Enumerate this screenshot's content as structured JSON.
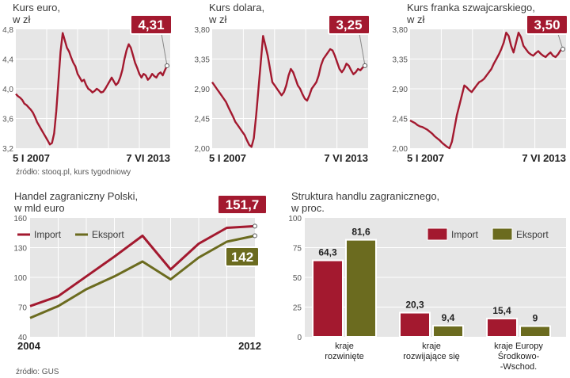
{
  "colors": {
    "red": "#a3192f",
    "olive": "#6b6b1f",
    "panel": "#e6e6e6",
    "grid": "#ffffff"
  },
  "chart_data": [
    {
      "type": "line",
      "title": "Kurs euro,",
      "subtitle": "w zł",
      "badge": "4,31",
      "y_ticks": [
        "4,8",
        "4,4",
        "4,0",
        "3,6",
        "3,2"
      ],
      "ylim": [
        3.2,
        4.8
      ],
      "x_labels": [
        "5 I 2007",
        "7 VI 2013"
      ],
      "series": [
        {
          "values": [
            3.93,
            3.9,
            3.88,
            3.85,
            3.8,
            3.78,
            3.75,
            3.72,
            3.68,
            3.62,
            3.55,
            3.5,
            3.45,
            3.4,
            3.35,
            3.3,
            3.25,
            3.27,
            3.4,
            3.7,
            4.1,
            4.5,
            4.75,
            4.65,
            4.55,
            4.5,
            4.42,
            4.35,
            4.3,
            4.2,
            4.15,
            4.1,
            4.12,
            4.05,
            4.0,
            3.98,
            3.95,
            3.97,
            4.0,
            3.98,
            3.95,
            3.96,
            4.0,
            4.05,
            4.1,
            4.15,
            4.1,
            4.05,
            4.08,
            4.15,
            4.25,
            4.4,
            4.52,
            4.6,
            4.55,
            4.45,
            4.35,
            4.28,
            4.2,
            4.15,
            4.2,
            4.18,
            4.12,
            4.15,
            4.2,
            4.17,
            4.15,
            4.2,
            4.22,
            4.18,
            4.25,
            4.31
          ]
        }
      ]
    },
    {
      "type": "line",
      "title": "Kurs dolara,",
      "subtitle": "w zł",
      "badge": "3,25",
      "y_ticks": [
        "3,80",
        "3,35",
        "2,90",
        "2,45",
        "2,00"
      ],
      "ylim": [
        2.0,
        3.8
      ],
      "x_labels": [
        "5 I 2007",
        "7 VI 2013"
      ],
      "series": [
        {
          "values": [
            3.0,
            2.95,
            2.9,
            2.85,
            2.8,
            2.75,
            2.7,
            2.62,
            2.55,
            2.48,
            2.4,
            2.35,
            2.3,
            2.25,
            2.2,
            2.12,
            2.05,
            2.02,
            2.15,
            2.5,
            2.9,
            3.3,
            3.7,
            3.55,
            3.4,
            3.2,
            3.0,
            2.95,
            2.9,
            2.85,
            2.8,
            2.85,
            2.95,
            3.1,
            3.2,
            3.15,
            3.05,
            2.95,
            2.9,
            2.82,
            2.75,
            2.72,
            2.8,
            2.9,
            2.95,
            3.0,
            3.1,
            3.25,
            3.35,
            3.4,
            3.45,
            3.5,
            3.48,
            3.4,
            3.3,
            3.2,
            3.15,
            3.2,
            3.28,
            3.25,
            3.18,
            3.12,
            3.15,
            3.2,
            3.18,
            3.22,
            3.25
          ]
        }
      ]
    },
    {
      "type": "line",
      "title": "Kurs franka szwajcarskiego,",
      "subtitle": "w zł",
      "badge": "3,50",
      "y_ticks": [
        "3,80",
        "3,35",
        "2,90",
        "2,45",
        "2,00"
      ],
      "ylim": [
        2.0,
        3.8
      ],
      "x_labels": [
        "5 I 2007",
        "7 VI 2013"
      ],
      "series": [
        {
          "values": [
            2.42,
            2.4,
            2.38,
            2.35,
            2.33,
            2.32,
            2.3,
            2.28,
            2.25,
            2.22,
            2.18,
            2.15,
            2.12,
            2.08,
            2.05,
            2.02,
            2.0,
            2.1,
            2.3,
            2.5,
            2.65,
            2.8,
            2.95,
            2.92,
            2.88,
            2.85,
            2.9,
            2.95,
            3.0,
            3.02,
            3.05,
            3.1,
            3.15,
            3.2,
            3.28,
            3.35,
            3.42,
            3.5,
            3.6,
            3.75,
            3.7,
            3.55,
            3.45,
            3.6,
            3.75,
            3.68,
            3.55,
            3.5,
            3.45,
            3.42,
            3.4,
            3.44,
            3.47,
            3.43,
            3.4,
            3.38,
            3.42,
            3.45,
            3.4,
            3.38,
            3.42,
            3.48,
            3.5
          ]
        }
      ]
    },
    {
      "type": "line",
      "title": "Handel zagraniczny Polski,",
      "subtitle": "w mld euro",
      "y_ticks": [
        "160",
        "130",
        "100",
        "70",
        "40"
      ],
      "ylim": [
        40,
        160
      ],
      "x_labels": [
        "2004",
        "2012"
      ],
      "categories": [
        "2004",
        "2005",
        "2006",
        "2007",
        "2008",
        "2009",
        "2010",
        "2011",
        "2012"
      ],
      "series": [
        {
          "name": "Import",
          "values": [
            71,
            81,
            101,
            121,
            142,
            108,
            134,
            150,
            151.7
          ]
        },
        {
          "name": "Eksport",
          "values": [
            59,
            71,
            88,
            101,
            116,
            98,
            120,
            136,
            142
          ]
        }
      ],
      "badges": [
        "151,7",
        "142"
      ]
    },
    {
      "type": "bar",
      "title": "Struktura handlu zagranicznego,",
      "subtitle": "w proc.",
      "y_ticks": [
        "100",
        "75",
        "50",
        "25",
        "0"
      ],
      "ylim": [
        0,
        100
      ],
      "categories": [
        {
          "lines": [
            "kraje",
            "rozwinięte"
          ]
        },
        {
          "lines": [
            "kraje",
            "rozwijające się"
          ]
        },
        {
          "lines": [
            "kraje Europy",
            "Środkowo-",
            "-Wschod."
          ]
        }
      ],
      "series": [
        {
          "name": "Import",
          "values": [
            64.3,
            20.3,
            15.4
          ],
          "labels": [
            "64,3",
            "20,3",
            "15,4"
          ]
        },
        {
          "name": "Eksport",
          "values": [
            81.6,
            9.4,
            9
          ],
          "labels": [
            "81,6",
            "9,4",
            "9"
          ]
        }
      ]
    }
  ],
  "sources": {
    "top": "źródło: stooq.pl, kurs tygodniowy",
    "bottom": "źródło: GUS"
  }
}
